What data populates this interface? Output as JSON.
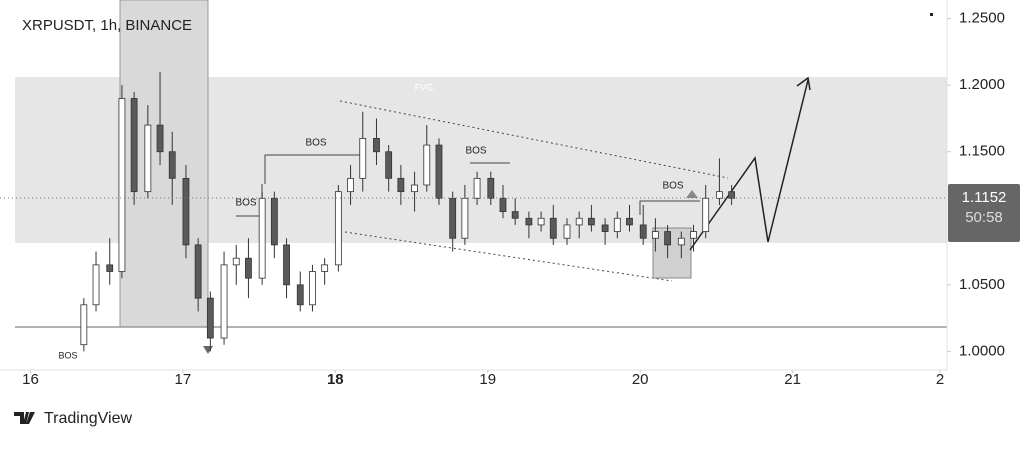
{
  "chart_data": {
    "type": "candlestick",
    "title": "XRPUSDT, 1h, BINANCE",
    "x": [
      16.35,
      16.43,
      16.52,
      16.6,
      16.68,
      16.77,
      16.85,
      16.93,
      17.02,
      17.1,
      17.18,
      17.27,
      17.35,
      17.43,
      17.52,
      17.6,
      17.68,
      17.77,
      17.85,
      17.93,
      18.02,
      18.1,
      18.18,
      18.27,
      18.35,
      18.43,
      18.52,
      18.6,
      18.68,
      18.77,
      18.85,
      18.93,
      19.02,
      19.1,
      19.18,
      19.27,
      19.35,
      19.43,
      19.52,
      19.6,
      19.68,
      19.77,
      19.85,
      19.93,
      20.02,
      20.1,
      20.18,
      20.27,
      20.35,
      20.43,
      20.52,
      20.6
    ],
    "open": [
      1.005,
      1.035,
      1.065,
      1.06,
      1.19,
      1.12,
      1.17,
      1.15,
      1.13,
      1.08,
      1.04,
      1.01,
      1.065,
      1.07,
      1.055,
      1.115,
      1.08,
      1.05,
      1.035,
      1.06,
      1.065,
      1.12,
      1.13,
      1.16,
      1.15,
      1.13,
      1.12,
      1.125,
      1.155,
      1.115,
      1.085,
      1.115,
      1.13,
      1.115,
      1.105,
      1.1,
      1.095,
      1.1,
      1.085,
      1.095,
      1.1,
      1.095,
      1.09,
      1.1,
      1.095,
      1.085,
      1.09,
      1.08,
      1.085,
      1.09,
      1.115,
      1.12
    ],
    "high": [
      1.04,
      1.075,
      1.085,
      1.2,
      1.195,
      1.185,
      1.21,
      1.165,
      1.14,
      1.085,
      1.045,
      1.075,
      1.08,
      1.085,
      1.12,
      1.12,
      1.085,
      1.06,
      1.065,
      1.07,
      1.125,
      1.14,
      1.18,
      1.175,
      1.155,
      1.14,
      1.135,
      1.17,
      1.16,
      1.12,
      1.125,
      1.135,
      1.135,
      1.125,
      1.115,
      1.105,
      1.105,
      1.11,
      1.1,
      1.105,
      1.11,
      1.1,
      1.105,
      1.11,
      1.11,
      1.1,
      1.095,
      1.09,
      1.095,
      1.125,
      1.145,
      1.125
    ],
    "low": [
      1.0,
      1.03,
      1.05,
      1.055,
      1.11,
      1.115,
      1.14,
      1.11,
      1.07,
      1.03,
      1.0,
      1.005,
      1.05,
      1.04,
      1.05,
      1.07,
      1.04,
      1.03,
      1.03,
      1.05,
      1.06,
      1.11,
      1.12,
      1.14,
      1.12,
      1.11,
      1.105,
      1.12,
      1.11,
      1.075,
      1.08,
      1.11,
      1.11,
      1.1,
      1.095,
      1.085,
      1.09,
      1.08,
      1.08,
      1.085,
      1.09,
      1.08,
      1.085,
      1.09,
      1.08,
      1.075,
      1.07,
      1.07,
      1.075,
      1.085,
      1.11,
      1.11
    ],
    "close": [
      1.035,
      1.065,
      1.06,
      1.19,
      1.12,
      1.17,
      1.15,
      1.13,
      1.08,
      1.04,
      1.01,
      1.065,
      1.07,
      1.055,
      1.115,
      1.08,
      1.05,
      1.035,
      1.06,
      1.065,
      1.12,
      1.13,
      1.16,
      1.15,
      1.13,
      1.12,
      1.125,
      1.155,
      1.115,
      1.085,
      1.115,
      1.13,
      1.115,
      1.105,
      1.1,
      1.095,
      1.1,
      1.085,
      1.095,
      1.1,
      1.095,
      1.09,
      1.1,
      1.095,
      1.085,
      1.09,
      1.08,
      1.085,
      1.09,
      1.115,
      1.12,
      1.115
    ],
    "up_color": "#ffffff",
    "down_color": "#5a5a5a",
    "outline_color": "#333333",
    "xlim": [
      15.8,
      22.0
    ],
    "xticks": [
      16,
      17,
      18,
      19,
      20,
      21,
      {
        "value": 22,
        "label": "2"
      }
    ],
    "ylim": [
      0.986,
      1.264
    ],
    "yticks": [
      {
        "value": 1.0,
        "label": "1.0000"
      },
      {
        "value": 1.05,
        "label": "1.0500"
      },
      {
        "value": 1.15,
        "label": "1.1500"
      },
      {
        "value": 1.2,
        "label": "1.2000"
      },
      {
        "value": 1.25,
        "label": "1.2500"
      }
    ],
    "last_price": 1.1152,
    "countdown": "50:58",
    "annotations": [
      "FVG",
      "BOS",
      "BOS",
      "BOS",
      "BOS",
      "BOS"
    ]
  },
  "footer": {
    "brand": "TradingView"
  }
}
